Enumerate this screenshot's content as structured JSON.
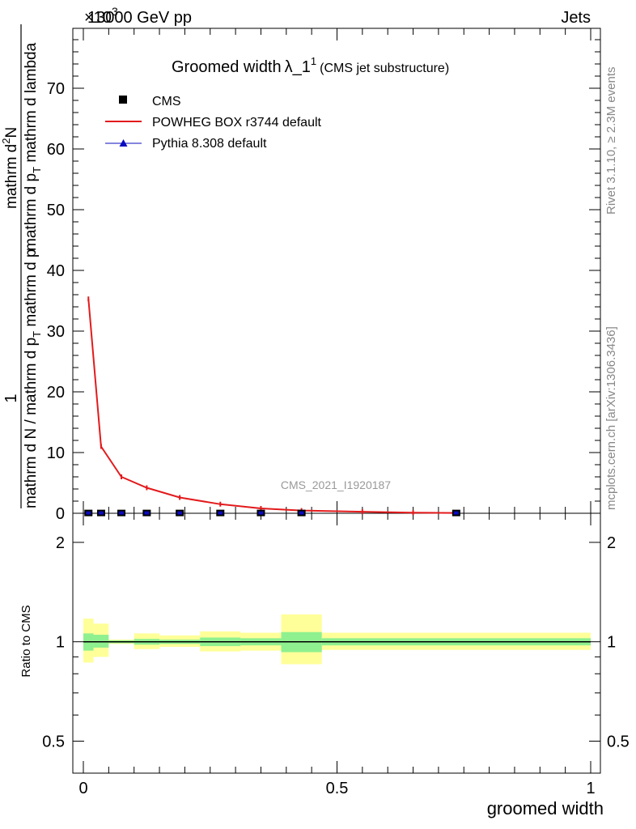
{
  "header": {
    "energy_label": "13000 GeV pp",
    "process_label": "Jets",
    "exponent_label": "×10",
    "exponent_power": "3"
  },
  "side_labels": {
    "rivet": "Rivet 3.1.10, ≥ 2.3M events",
    "mcplots": "mcplots.cern.ch [arXiv:1306.3436]"
  },
  "watermark": "CMS_2021_I1920187",
  "chart_data": [
    {
      "type": "line",
      "title_main": "Groomed width",
      "title_lambda": "λ_1",
      "title_sup": "1",
      "title_sub": "(CMS jet substructure)",
      "ylabel_num": "mathrm d",
      "ylabel_num_tail": "N",
      "ylabel_num_sup": "2",
      "ylabel_den_a": "mathrm d p",
      "ylabel_den_a_sub": "T",
      "ylabel_den_b": " mathrm d lambda",
      "ylabel_frac_lead": "1",
      "ylabel_den_main": "mathrm d N / mathrm d p",
      "ylabel_den_main_sub": "T",
      "ylabel_den_main_tail": " mathrm d p",
      "xlim": [
        0,
        1
      ],
      "ylim": [
        0,
        80
      ],
      "ytick_labels": [
        "0",
        "10",
        "20",
        "30",
        "40",
        "50",
        "60",
        "70"
      ],
      "yticks": [
        0,
        10,
        20,
        30,
        40,
        50,
        60,
        70
      ],
      "legend": [
        {
          "label": "CMS",
          "color": "#000000",
          "marker": "square"
        },
        {
          "label": "POWHEG BOX r3744 default",
          "color": "#e31a1c",
          "marker": "line"
        },
        {
          "label": "Pythia 8.308 default",
          "color": "#0b0bbf",
          "marker": "triangle"
        }
      ],
      "legend_position": "top-left",
      "series": [
        {
          "name": "CMS",
          "x": [
            0.01,
            0.035,
            0.075,
            0.125,
            0.19,
            0.27,
            0.35,
            0.43,
            0.735
          ],
          "y": [
            0.05,
            0.05,
            0.05,
            0.05,
            0.05,
            0.05,
            0.05,
            0.05,
            0.05
          ]
        },
        {
          "name": "POWHEG BOX r3744 default",
          "x": [
            0.01,
            0.035,
            0.075,
            0.125,
            0.19,
            0.27,
            0.35,
            0.43,
            0.55,
            0.65,
            0.735
          ],
          "y": [
            35.3,
            11.0,
            6.0,
            4.2,
            2.6,
            1.5,
            0.8,
            0.45,
            0.25,
            0.1,
            0.05
          ]
        }
      ]
    },
    {
      "type": "area",
      "ylabel": "Ratio to CMS",
      "xlabel": "groomed width",
      "xlim": [
        0,
        1
      ],
      "ylim": [
        0.4,
        2.4
      ],
      "log_y": true,
      "ytick_labels": [
        "0.5",
        "1",
        "2"
      ],
      "yticks": [
        0.5,
        1,
        2
      ],
      "xtick_labels": [
        "0",
        "0.5",
        "1"
      ],
      "xticks": [
        0,
        0.5,
        1
      ],
      "bin_edges": [
        0,
        0.02,
        0.05,
        0.1,
        0.15,
        0.23,
        0.31,
        0.39,
        0.47,
        1.0
      ],
      "stat_band": {
        "color": "#8ff08f",
        "lo": [
          0.94,
          0.96,
          0.99,
          0.98,
          0.985,
          0.97,
          0.975,
          0.93,
          0.975
        ],
        "hi": [
          1.06,
          1.05,
          1.01,
          1.02,
          1.015,
          1.03,
          1.025,
          1.07,
          1.025
        ]
      },
      "total_band": {
        "color": "#ffff99",
        "lo": [
          0.865,
          0.9,
          0.985,
          0.95,
          0.965,
          0.935,
          0.94,
          0.855,
          0.945
        ],
        "hi": [
          1.175,
          1.135,
          1.015,
          1.06,
          1.045,
          1.075,
          1.065,
          1.21,
          1.065
        ]
      },
      "reference_value": 1
    }
  ]
}
